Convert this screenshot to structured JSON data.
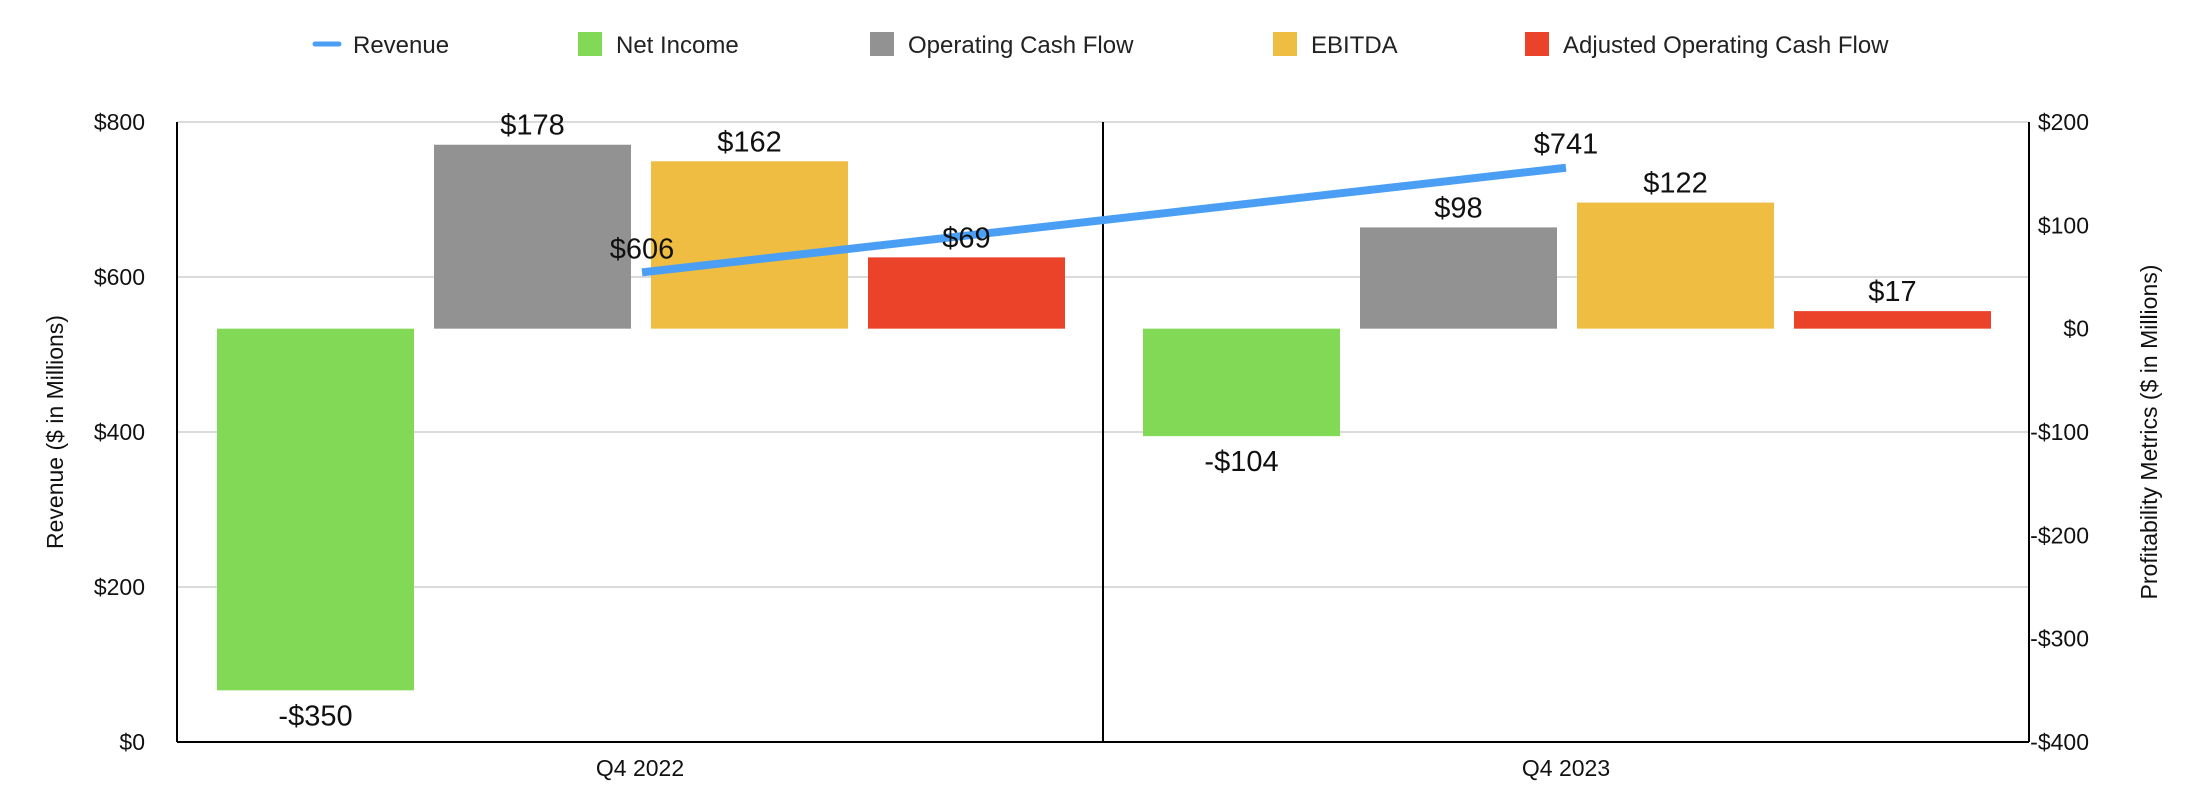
{
  "chart_data": {
    "type": "bar",
    "categories": [
      "Q4 2022",
      "Q4 2023"
    ],
    "series": [
      {
        "name": "Revenue",
        "kind": "line",
        "axis": "left",
        "color": "#4A9FF5",
        "values": [
          606,
          741
        ],
        "labels": [
          "$606",
          "$741"
        ]
      },
      {
        "name": "Net Income",
        "kind": "bar",
        "axis": "right",
        "color": "#82D955",
        "values": [
          -350,
          -104
        ],
        "labels": [
          "-$350",
          "-$104"
        ]
      },
      {
        "name": "Operating Cash Flow",
        "kind": "bar",
        "axis": "right",
        "color": "#929292",
        "values": [
          178,
          98
        ],
        "labels": [
          "$178",
          "$98"
        ]
      },
      {
        "name": "EBITDA",
        "kind": "bar",
        "axis": "right",
        "color": "#EFBD42",
        "values": [
          162,
          122
        ],
        "labels": [
          "$162",
          "$122"
        ]
      },
      {
        "name": "Adjusted Operating Cash Flow",
        "kind": "bar",
        "axis": "right",
        "color": "#EB4329",
        "values": [
          69,
          17
        ],
        "labels": [
          "$69",
          "$17"
        ]
      }
    ],
    "left_axis": {
      "label": "Revenue ($ in Millions)",
      "range": [
        0,
        800
      ],
      "ticks": [
        0,
        200,
        400,
        600,
        800
      ],
      "tick_labels": [
        "$0",
        "$200",
        "$400",
        "$600",
        "$800"
      ]
    },
    "right_axis": {
      "label": "Profitability Metrics ($ in Millions)",
      "range": [
        -400,
        200
      ],
      "ticks": [
        -400,
        -300,
        -200,
        -100,
        0,
        100,
        200
      ],
      "tick_labels": [
        "-$400",
        "-$300",
        "-$200",
        "-$100",
        "$0",
        "$100",
        "$200"
      ]
    },
    "grid": true,
    "legend_position": "top"
  }
}
